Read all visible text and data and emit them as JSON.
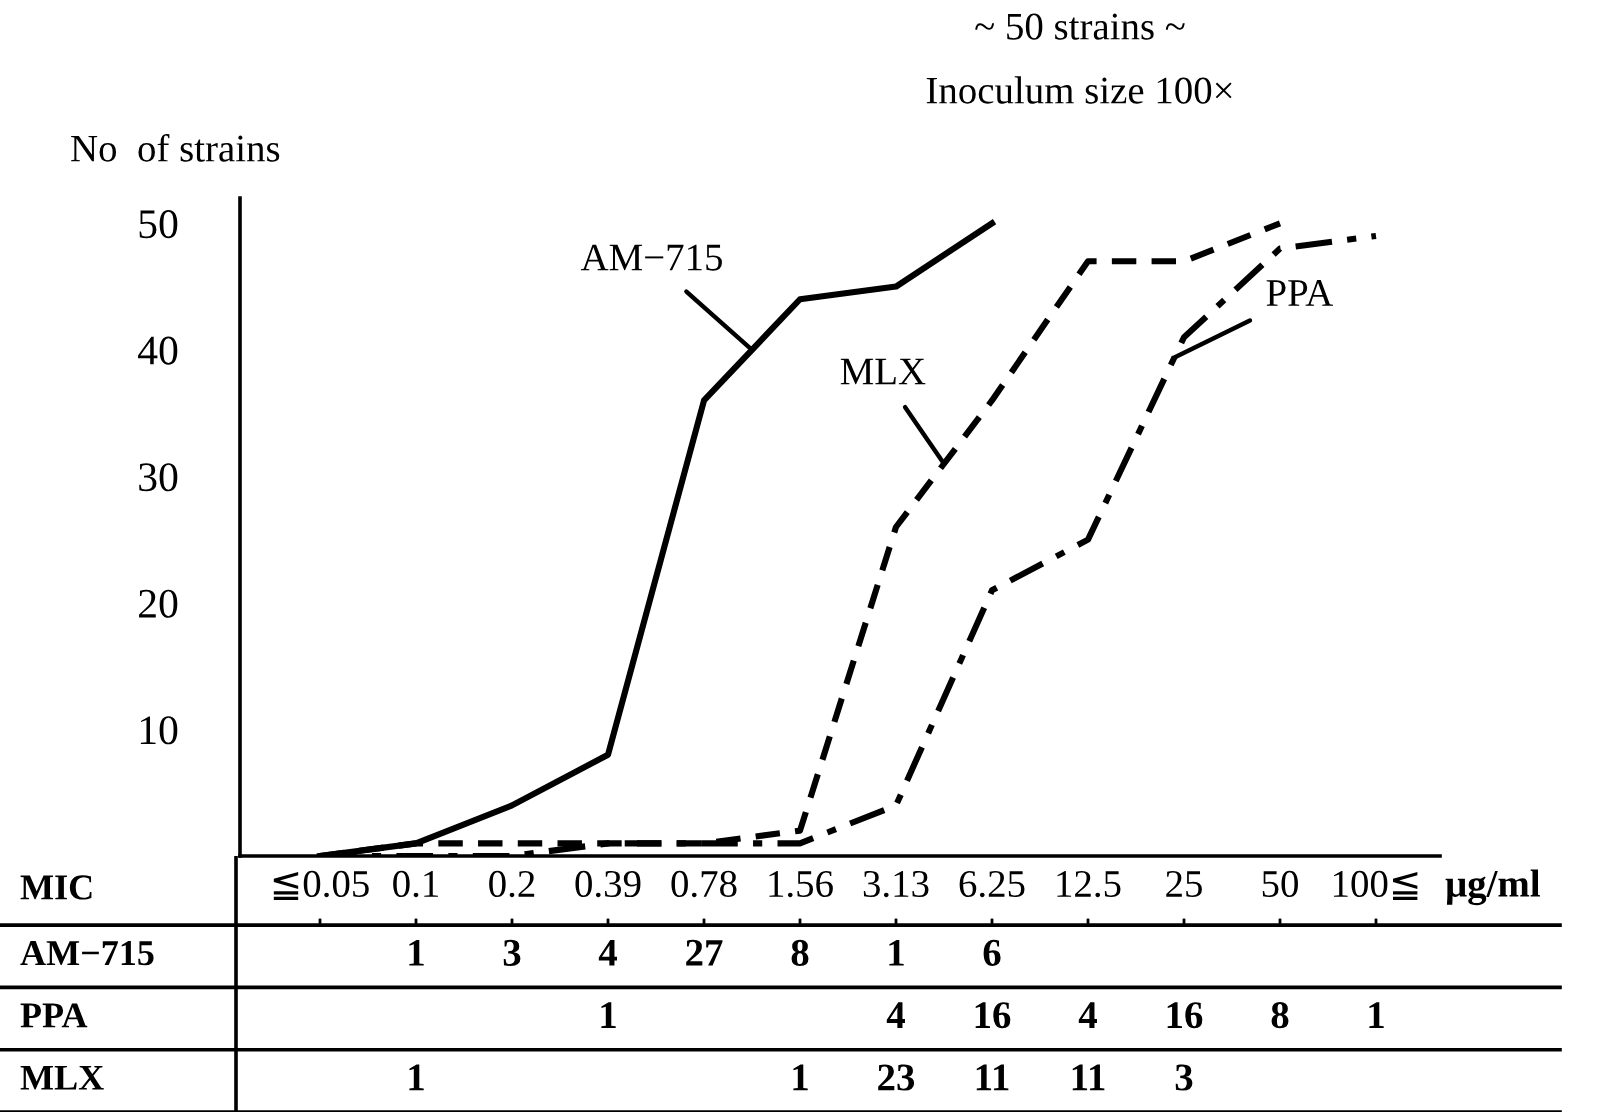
{
  "chart_data": [
    {
      "type": "line",
      "title": "~ 50 strains ~",
      "subtitle": "Inoculum size 100×",
      "ylabel": "No  of strains",
      "categories": [
        null,
        null,
        null,
        null,
        null,
        null,
        null,
        null,
        null,
        null,
        null,
        null
      ],
      "ylim": [
        0,
        52
      ],
      "yticks": [
        10,
        20,
        30,
        40,
        50
      ],
      "grid": false,
      "series": [
        {
          "name": "AM−715",
          "color": "#000000",
          "line_style": "solid",
          "values": [
            0,
            1,
            4,
            8,
            36,
            44,
            45,
            50,
            null,
            null,
            null,
            null
          ]
        },
        {
          "name": "MLX",
          "color": "#000000",
          "line_style": "dashed",
          "values": [
            0,
            1,
            1,
            1,
            1,
            2,
            26,
            36,
            47,
            47,
            50,
            null
          ]
        },
        {
          "name": "PPA",
          "color": "#000000",
          "line_style": "dashdot",
          "values": [
            0,
            0,
            0,
            1,
            1,
            1,
            4,
            21,
            25,
            41,
            48,
            49
          ]
        }
      ]
    },
    {
      "type": "other",
      "data_labels": true,
      "xlabel": "MIC",
      "annotations": [
        "μg/ml"
      ],
      "categories": [
        "≦0.05",
        "0.1",
        "0.2",
        "0.39",
        "0.78",
        "1.56",
        "3.13",
        "6.25",
        "12.5",
        "25",
        "50",
        "100≦"
      ],
      "series": [
        {
          "name": "AM−715",
          "values": [
            null,
            1,
            3,
            4,
            27,
            8,
            1,
            6,
            null,
            null,
            null,
            null
          ]
        },
        {
          "name": "PPA",
          "values": [
            null,
            null,
            null,
            1,
            null,
            null,
            4,
            16,
            4,
            16,
            8,
            1
          ]
        },
        {
          "name": "MLX",
          "values": [
            null,
            1,
            null,
            null,
            null,
            1,
            23,
            11,
            11,
            3,
            null,
            null
          ]
        }
      ]
    }
  ]
}
